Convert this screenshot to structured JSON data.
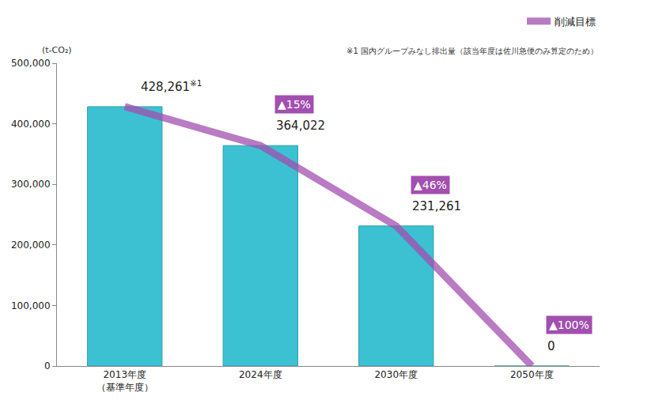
{
  "chart_data": {
    "type": "bar",
    "ylabel": "(t-CO₂)",
    "footnote": "※1 国内グループみなし排出量（該当年度は佐川急便のみ算定のため）",
    "categories": [
      "2013年度（基準年度）",
      "2024年度",
      "2030年度",
      "2050年度"
    ],
    "values": [
      428261,
      364022,
      231261,
      0
    ],
    "value_labels": [
      "428,261",
      "364,022",
      "231,261",
      "0"
    ],
    "label_notes": [
      "※1",
      null,
      null,
      null
    ],
    "color": "#3cc1d2",
    "series": [
      {
        "name": "削減目標",
        "type": "line",
        "color": "#a24fb0",
        "values": [
          428261,
          364022,
          231261,
          0
        ]
      }
    ],
    "annotations": [
      {
        "category": "2024年度",
        "text": "▲15%"
      },
      {
        "category": "2030年度",
        "text": "▲46%"
      },
      {
        "category": "2050年度",
        "text": "▲100%"
      }
    ],
    "ylim": [
      0,
      500000
    ],
    "yticks": [
      0,
      {
        "value": 100000,
        "label": "100,000"
      },
      {
        "value": 200000,
        "label": "200,000"
      },
      {
        "value": 300000,
        "label": "300,000"
      },
      {
        "value": 400000,
        "label": "400,000"
      },
      {
        "value": 500000,
        "label": "500,000"
      }
    ],
    "grid": false,
    "legend": "top right",
    "data_labels": true
  }
}
